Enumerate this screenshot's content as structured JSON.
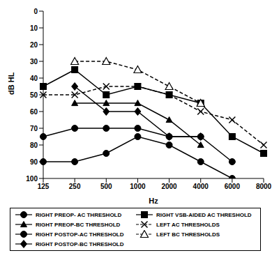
{
  "chart_data": {
    "type": "line",
    "x_label": "Hz",
    "y_label": "dB HL",
    "categories": [
      125,
      250,
      500,
      1000,
      2000,
      4000,
      6000,
      8000
    ],
    "ylim": [
      0,
      100
    ],
    "yticks": [
      0,
      10,
      20,
      30,
      40,
      50,
      60,
      70,
      80,
      90,
      100
    ],
    "grid": false,
    "series": [
      {
        "name": "RIGHT PREOP- AC THRESHOLD",
        "color": "#000000",
        "marker": "circle",
        "line_style": "solid",
        "values": [
          90,
          90,
          85,
          75,
          80,
          90,
          100,
          null
        ]
      },
      {
        "name": "RIGHT PREOP-BC THRESHOLD",
        "color": "#000000",
        "marker": "triangle",
        "line_style": "solid",
        "values": [
          null,
          55,
          55,
          55,
          65,
          80,
          null,
          null
        ]
      },
      {
        "name": "RIGHT POSTOP-AC THRESHOLD",
        "color": "#000000",
        "marker": "circle",
        "line_style": "solid",
        "values": [
          75,
          70,
          70,
          70,
          75,
          75,
          90,
          null
        ]
      },
      {
        "name": "RIGHT POSTOP-BC THRESHOLD",
        "color": "#000000",
        "marker": "diamond",
        "line_style": "solid",
        "values": [
          null,
          45,
          60,
          60,
          75,
          75,
          null,
          null
        ]
      },
      {
        "name": "RIGHT VSB-AIDED AC THRESHOLD",
        "color": "#000000",
        "marker": "square",
        "line_style": "solid",
        "values": [
          45,
          35,
          50,
          45,
          50,
          55,
          75,
          85
        ]
      },
      {
        "name": "LEFT AC THRESHOLDS",
        "color": "#000000",
        "marker": "cross",
        "line_style": "dashed",
        "values": [
          50,
          50,
          45,
          45,
          50,
          60,
          65,
          80
        ]
      },
      {
        "name": "LEFT BC THRESHOLDS",
        "color": "#000000",
        "marker": "triangle_open",
        "line_style": "dashed",
        "values": [
          null,
          30,
          30,
          35,
          45,
          55,
          null,
          null
        ]
      }
    ]
  }
}
